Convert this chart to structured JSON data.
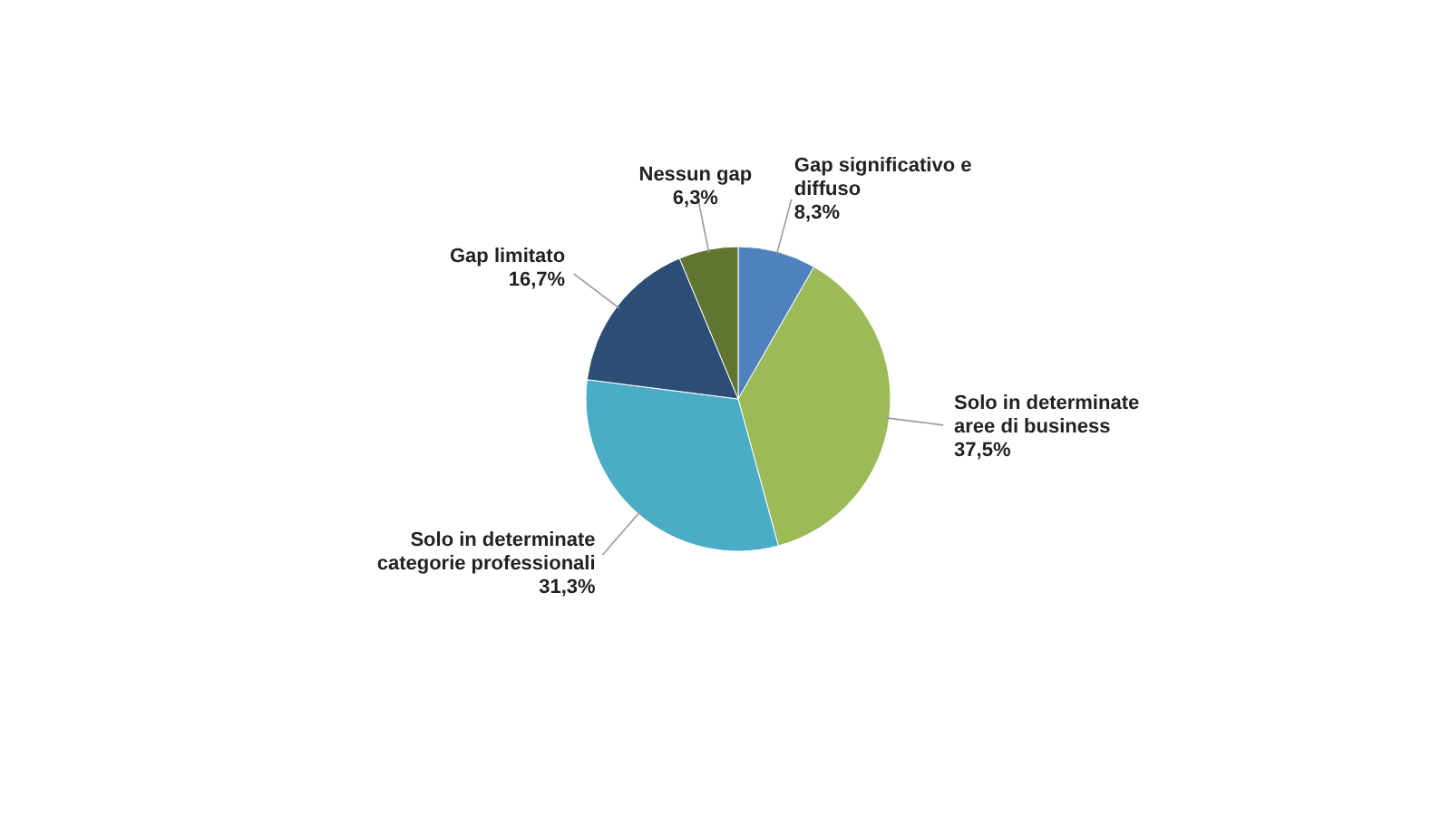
{
  "chart_data": {
    "type": "pie",
    "categories": [
      "Gap significativo e diffuso",
      "Solo in determinate aree di business",
      "Solo in determinate categorie professionali",
      "Gap limitato",
      "Nessun gap"
    ],
    "values": [
      8.3,
      37.5,
      31.3,
      16.7,
      6.3
    ],
    "colors": [
      "#4f81bd",
      "#9bbb59",
      "#4bacc6",
      "#2c4d75",
      "#5f7530"
    ],
    "value_labels": [
      "8,3%",
      "37,5%",
      "31,3%",
      "16,7%",
      "6,3%"
    ]
  }
}
